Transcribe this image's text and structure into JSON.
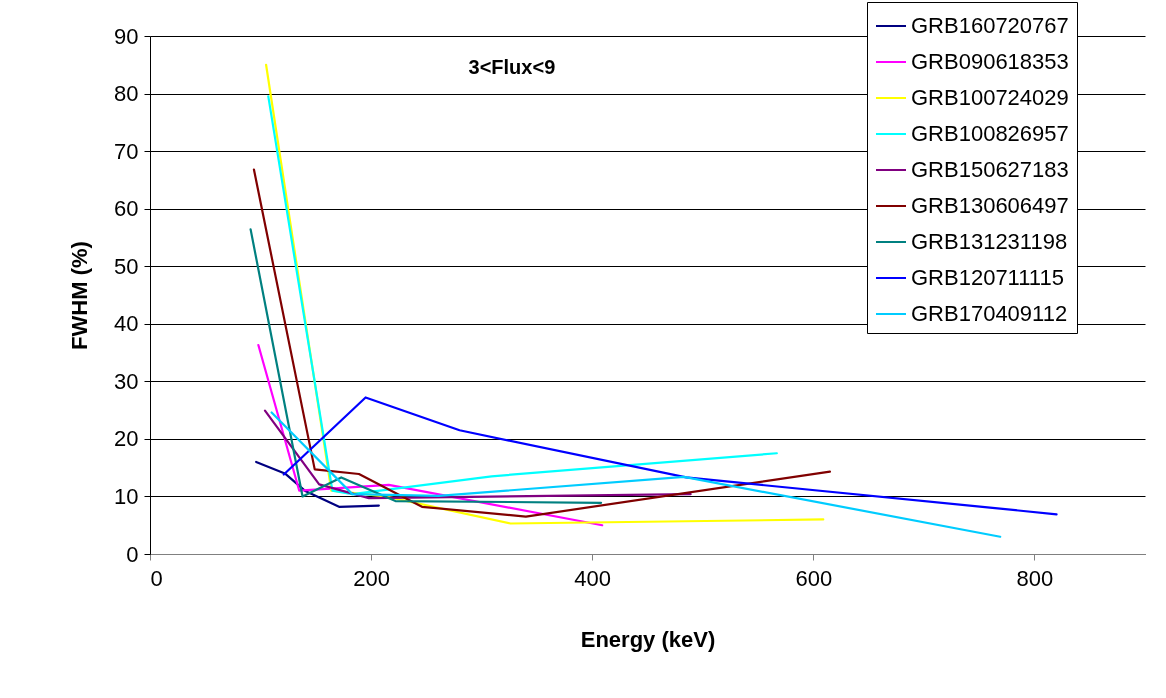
{
  "chart_data": {
    "type": "line",
    "title": "3<Flux<9",
    "xlabel": "Energy (keV)",
    "ylabel": "FWHM (%)",
    "xlim": [
      0,
      900
    ],
    "xticks": [
      0,
      200,
      400,
      600,
      800
    ],
    "ylim": [
      0,
      90
    ],
    "yticks": [
      0,
      10,
      20,
      30,
      40,
      50,
      60,
      70,
      80,
      90
    ],
    "grid": "y",
    "legend": "top right",
    "marker": "none",
    "line_style": "solid",
    "series": [
      {
        "name": "GRB160720767",
        "color": "#000080",
        "x": [
          96,
          122,
          140,
          171,
          207
        ],
        "values": [
          16,
          14,
          11,
          8.2,
          8.4
        ]
      },
      {
        "name": "GRB090618353",
        "color": "#ff00ff",
        "x": [
          98,
          135,
          216,
          409
        ],
        "values": [
          36.3,
          11,
          12,
          5
        ]
      },
      {
        "name": "GRB100724029",
        "color": "#ffff00",
        "x": [
          105,
          164,
          213,
          326,
          609
        ],
        "values": [
          85,
          11,
          10,
          5.3,
          6
        ]
      },
      {
        "name": "GRB100826957",
        "color": "#00ffff",
        "x": [
          107,
          165,
          183,
          309,
          567
        ],
        "values": [
          79.5,
          11,
          10.4,
          13.5,
          17.5
        ]
      },
      {
        "name": "GRB150627183",
        "color": "#800080",
        "x": [
          104,
          153,
          198,
          489
        ],
        "values": [
          24.9,
          12.1,
          9.7,
          10.4
        ]
      },
      {
        "name": "GRB130606497",
        "color": "#800000",
        "x": [
          94,
          149,
          189,
          246,
          340,
          615
        ],
        "values": [
          66.8,
          14.7,
          13.9,
          8.2,
          6.5,
          14.3
        ]
      },
      {
        "name": "GRB131231198",
        "color": "#008080",
        "x": [
          91,
          138,
          173,
          222,
          408
        ],
        "values": [
          56.4,
          10,
          13.3,
          9.2,
          8.9
        ]
      },
      {
        "name": "GRB120711115",
        "color": "#0000ff",
        "x": [
          121,
          195,
          280,
          485,
          820
        ],
        "values": [
          13.8,
          27.2,
          21.5,
          13.3,
          6.9
        ]
      },
      {
        "name": "GRB170409112",
        "color": "#00ccff",
        "x": [
          110,
          183,
          261,
          483,
          769
        ],
        "values": [
          24.6,
          10.4,
          10.1,
          13.4,
          3
        ]
      }
    ]
  }
}
